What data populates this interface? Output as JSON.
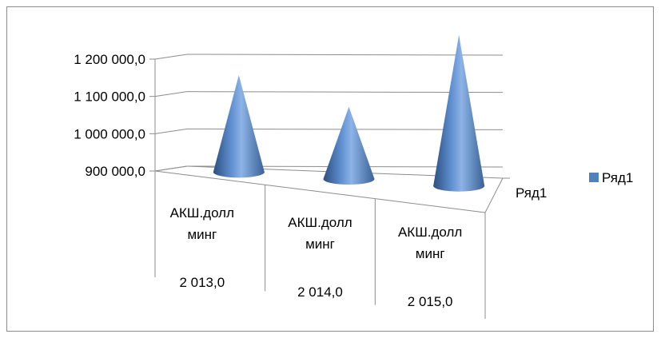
{
  "chart_data": {
    "type": "bar",
    "bar_shape": "cone",
    "view": "3d",
    "categories": [
      {
        "line1": "АКШ.долл",
        "line2": "минг",
        "line3": "2 013,0"
      },
      {
        "line1": "АКШ.долл",
        "line2": "минг",
        "line3": "2 014,0"
      },
      {
        "line1": "АКШ.долл",
        "line2": "минг",
        "line3": "2 015,0"
      }
    ],
    "series": [
      {
        "name": "Ряд1",
        "values": [
          1125000,
          1040000,
          1175000
        ],
        "color": "#4f81bd"
      }
    ],
    "ylim": [
      900000,
      1200000
    ],
    "yticks": [
      "900 000,0",
      "1 000 000,0",
      "1 100 000,0",
      "1 200 000,0"
    ],
    "depth_axis_label": "Ряд1",
    "grid": true,
    "legend": {
      "position": "right",
      "label": "Ряд1"
    }
  }
}
